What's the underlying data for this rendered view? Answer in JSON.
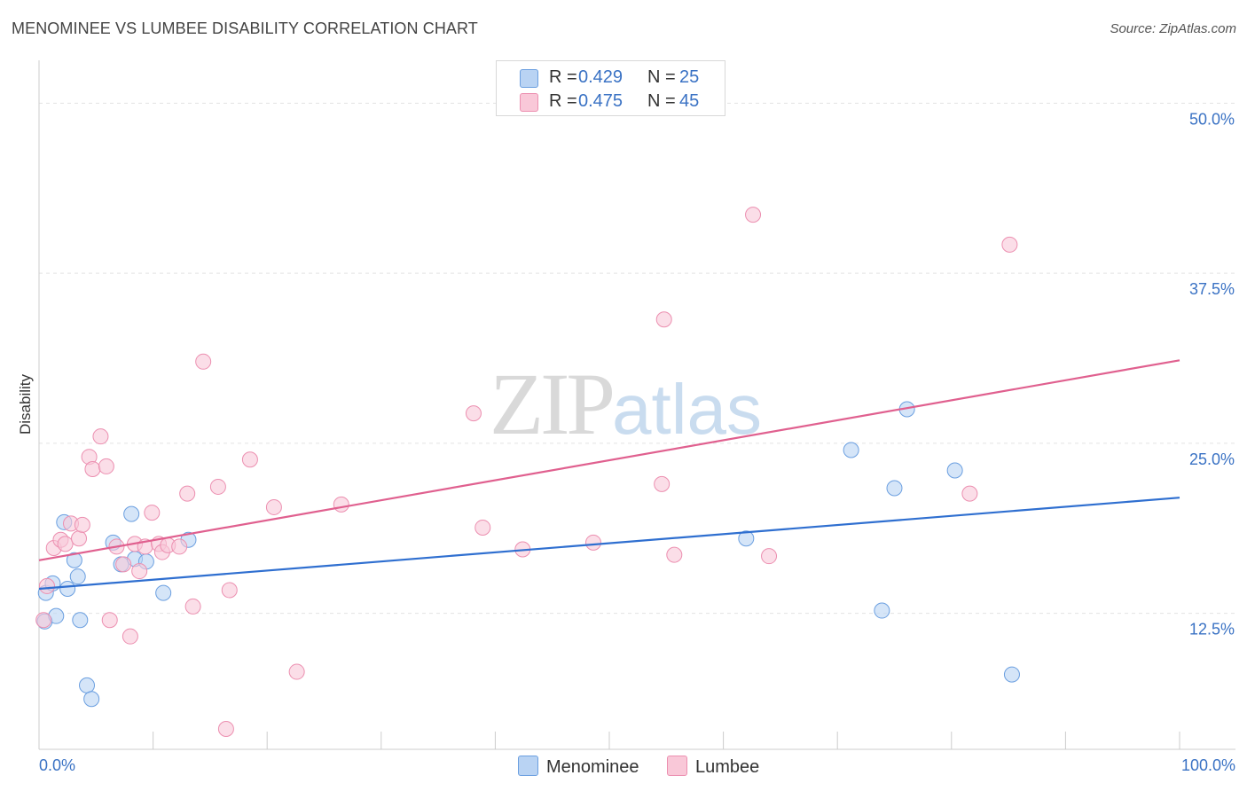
{
  "chart_data": {
    "type": "scatter",
    "title": "MENOMINEE VS LUMBEE DISABILITY CORRELATION CHART",
    "source": "Source: ZipAtlas.com",
    "xlabel": "",
    "ylabel": "Disability",
    "xlim": [
      0,
      100
    ],
    "ylim": [
      2.5,
      52.5
    ],
    "x_tick_labels": [
      "0.0%",
      "100.0%"
    ],
    "y_ticks": [
      12.5,
      25.0,
      37.5,
      50.0
    ],
    "y_tick_labels": [
      "12.5%",
      "25.0%",
      "37.5%",
      "50.0%"
    ],
    "watermark": {
      "zip": "ZIP",
      "atlas": "atlas"
    },
    "legend": [
      {
        "r_label": "R = ",
        "r_value": "0.429",
        "n_label": "N = ",
        "n_value": "25"
      },
      {
        "r_label": "R = ",
        "r_value": "0.475",
        "n_label": "N = ",
        "n_value": "45"
      }
    ],
    "series": [
      {
        "name": "Menominee",
        "color": "#6b9fe0",
        "fill": "#b9d3f3",
        "line_color": "#2f6fd0",
        "trend": {
          "x0": 0,
          "y0": 14.3,
          "x1": 100,
          "y1": 21.0
        },
        "points": [
          [
            0.6,
            14.0
          ],
          [
            0.5,
            11.9
          ],
          [
            1.2,
            14.7
          ],
          [
            1.5,
            12.3
          ],
          [
            2.2,
            19.2
          ],
          [
            2.5,
            14.3
          ],
          [
            3.1,
            16.4
          ],
          [
            3.4,
            15.2
          ],
          [
            3.6,
            12.0
          ],
          [
            4.2,
            7.2
          ],
          [
            4.6,
            6.2
          ],
          [
            6.5,
            17.7
          ],
          [
            7.2,
            16.1
          ],
          [
            8.1,
            19.8
          ],
          [
            8.4,
            16.5
          ],
          [
            9.4,
            16.3
          ],
          [
            10.9,
            14.0
          ],
          [
            13.1,
            17.9
          ],
          [
            62.0,
            18.0
          ],
          [
            71.2,
            24.5
          ],
          [
            73.9,
            12.7
          ],
          [
            75.0,
            21.7
          ],
          [
            76.1,
            27.5
          ],
          [
            80.3,
            23.0
          ],
          [
            85.3,
            8.0
          ]
        ]
      },
      {
        "name": "Lumbee",
        "color": "#ec8fb0",
        "fill": "#f9c8d8",
        "line_color": "#e0608f",
        "trend": {
          "x0": 0,
          "y0": 16.4,
          "x1": 100,
          "y1": 31.1
        },
        "points": [
          [
            0.4,
            12.0
          ],
          [
            0.7,
            14.5
          ],
          [
            1.3,
            17.3
          ],
          [
            1.9,
            17.9
          ],
          [
            2.3,
            17.6
          ],
          [
            2.8,
            19.1
          ],
          [
            3.5,
            18.0
          ],
          [
            3.8,
            19.0
          ],
          [
            4.4,
            24.0
          ],
          [
            4.7,
            23.1
          ],
          [
            5.4,
            25.5
          ],
          [
            5.9,
            23.3
          ],
          [
            6.2,
            12.0
          ],
          [
            6.8,
            17.4
          ],
          [
            7.4,
            16.1
          ],
          [
            8.0,
            10.8
          ],
          [
            8.4,
            17.6
          ],
          [
            8.8,
            15.6
          ],
          [
            9.3,
            17.4
          ],
          [
            9.9,
            19.9
          ],
          [
            10.5,
            17.6
          ],
          [
            10.8,
            17.0
          ],
          [
            11.3,
            17.5
          ],
          [
            12.3,
            17.4
          ],
          [
            13.0,
            21.3
          ],
          [
            13.5,
            13.0
          ],
          [
            14.4,
            31.0
          ],
          [
            15.7,
            21.8
          ],
          [
            16.4,
            4.0
          ],
          [
            16.7,
            14.2
          ],
          [
            18.5,
            23.8
          ],
          [
            20.6,
            20.3
          ],
          [
            22.6,
            8.2
          ],
          [
            26.5,
            20.5
          ],
          [
            38.1,
            27.2
          ],
          [
            38.9,
            18.8
          ],
          [
            42.4,
            17.2
          ],
          [
            48.6,
            17.7
          ],
          [
            54.6,
            22.0
          ],
          [
            54.8,
            34.1
          ],
          [
            55.7,
            16.8
          ],
          [
            62.6,
            41.8
          ],
          [
            64.0,
            16.7
          ],
          [
            81.6,
            21.3
          ],
          [
            85.1,
            39.6
          ]
        ]
      }
    ]
  }
}
